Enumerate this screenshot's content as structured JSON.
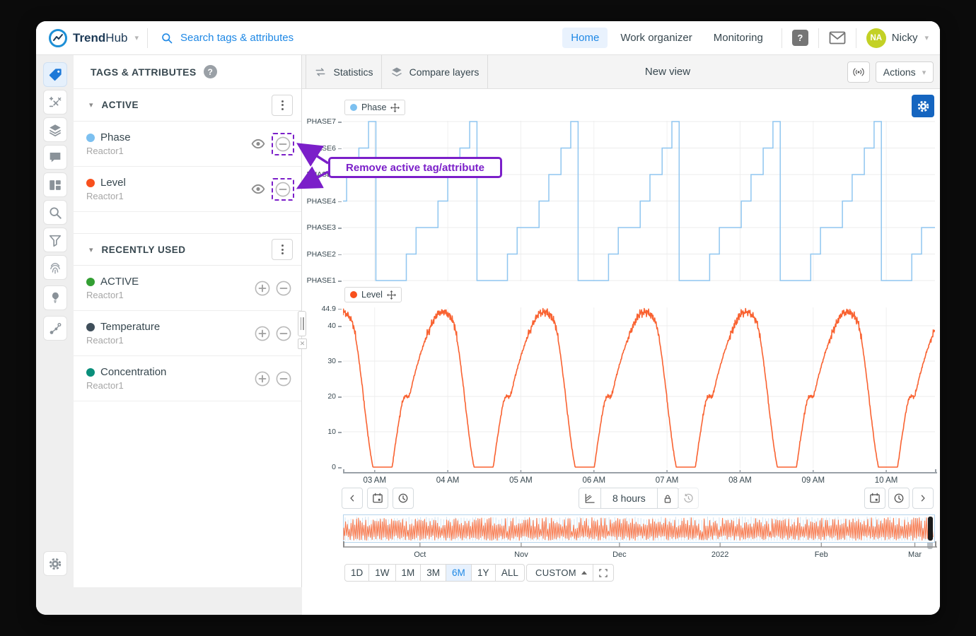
{
  "colors": {
    "accent_blue": "#1e88e5",
    "annotation_purple": "#7b1fc9",
    "avatar_green": "#c3d125",
    "gear_button_blue": "#1565c0",
    "phase_line": "#8fc6f0",
    "level_line": "#f96231"
  },
  "topbar": {
    "brand_bold": "Trend",
    "brand_light": "Hub",
    "search_placeholder": "Search tags & attributes",
    "nav": [
      {
        "label": "Home",
        "active": true
      },
      {
        "label": "Work organizer",
        "active": false
      },
      {
        "label": "Monitoring",
        "active": false
      }
    ],
    "user": {
      "initials": "NA",
      "name": "Nicky"
    }
  },
  "toolbar": {
    "statistics": "Statistics",
    "compare_layers": "Compare layers",
    "view_title": "New view",
    "actions": "Actions"
  },
  "tags_panel": {
    "title": "TAGS & ATTRIBUTES",
    "sections": [
      {
        "title": "ACTIVE",
        "items": [
          {
            "name": "Phase",
            "source": "Reactor1",
            "color": "#7cc0f0",
            "remove_highlighted": true
          },
          {
            "name": "Level",
            "source": "Reactor1",
            "color": "#f8501d",
            "remove_highlighted": true
          }
        ]
      },
      {
        "title": "RECENTLY USED",
        "items": [
          {
            "name": "ACTIVE",
            "source": "Reactor1",
            "color": "#339f33"
          },
          {
            "name": "Temperature",
            "source": "Reactor1",
            "color": "#3f4e5a"
          },
          {
            "name": "Concentration",
            "source": "Reactor1",
            "color": "#0a8f7b"
          }
        ]
      }
    ]
  },
  "annotation": {
    "label": "Remove active tag/attribute"
  },
  "chart_data": [
    {
      "type": "line",
      "subtype": "step",
      "series_name": "Phase",
      "source": "Reactor1",
      "color": "#8fc6f0",
      "legend_dot_color": "#7cc0f0",
      "y_categories": [
        "PHASE1",
        "PHASE2",
        "PHASE3",
        "PHASE4",
        "PHASE5",
        "PHASE6",
        "PHASE7"
      ],
      "y_labels_top_to_bottom": [
        "PHASE7",
        "PHASE6",
        "PHASE5",
        "PHASE4",
        "PHASE3",
        "PHASE2",
        "PHASE1"
      ],
      "x_axis": {
        "start_hour": 2.5667,
        "end_hour": 10.6667,
        "tick_hours": [
          3,
          4,
          5,
          6,
          7,
          8,
          9,
          10
        ],
        "tick_labels": [
          "03 AM",
          "04 AM",
          "05 AM",
          "06 AM",
          "07 AM",
          "08 AM",
          "09 AM",
          "10 AM"
        ]
      },
      "pattern": {
        "period_minutes": 83,
        "first_cycle_start_hour": 1.633,
        "steps": [
          {
            "phase": 1,
            "minutes": 25
          },
          {
            "phase": 2,
            "minutes": 8
          },
          {
            "phase": 3,
            "minutes": 18
          },
          {
            "phase": 4,
            "minutes": 8
          },
          {
            "phase": 5,
            "minutes": 10
          },
          {
            "phase": 6,
            "minutes": 8
          },
          {
            "phase": 7,
            "minutes": 6
          }
        ]
      },
      "grid": true
    },
    {
      "type": "line",
      "series_name": "Level",
      "source": "Reactor1",
      "color": "#f96231",
      "legend_dot_color": "#f8501d",
      "ylim": [
        0,
        44.9
      ],
      "y_tick_values": [
        44.9,
        40,
        30,
        20,
        10,
        0
      ],
      "y_tick_labels": [
        "44.9",
        "40",
        "30",
        "20",
        "10",
        "0"
      ],
      "pattern": {
        "period_minutes": 83,
        "flat_start_hour": 3.1,
        "cycle_anchors_fraction_value": [
          [
            0,
            0
          ],
          [
            0.1,
            0
          ],
          [
            0.14,
            8
          ],
          [
            0.19,
            17
          ],
          [
            0.22,
            20
          ],
          [
            0.27,
            20
          ],
          [
            0.32,
            26
          ],
          [
            0.38,
            32
          ],
          [
            0.44,
            37
          ],
          [
            0.5,
            41
          ],
          [
            0.55,
            43.5
          ],
          [
            0.62,
            44
          ],
          [
            0.68,
            42.5
          ],
          [
            0.72,
            40
          ],
          [
            0.76,
            33
          ],
          [
            0.8,
            24
          ],
          [
            0.84,
            14
          ],
          [
            0.88,
            5
          ],
          [
            0.91,
            0
          ],
          [
            1,
            0
          ]
        ],
        "noise_amplitude": 1.1
      },
      "grid": true
    }
  ],
  "time_nav": {
    "duration_label": "8 hours"
  },
  "overview": {
    "months": [
      {
        "label": "Oct",
        "f": 0.13
      },
      {
        "label": "Nov",
        "f": 0.301
      },
      {
        "label": "Dec",
        "f": 0.467
      },
      {
        "label": "2022",
        "f": 0.637
      },
      {
        "label": "Feb",
        "f": 0.808
      },
      {
        "label": "Mar",
        "f": 0.966
      }
    ]
  },
  "range_buttons": {
    "options": [
      "1D",
      "1W",
      "1M",
      "3M",
      "6M",
      "1Y",
      "ALL"
    ],
    "active": "6M",
    "custom_label": "CUSTOM"
  }
}
